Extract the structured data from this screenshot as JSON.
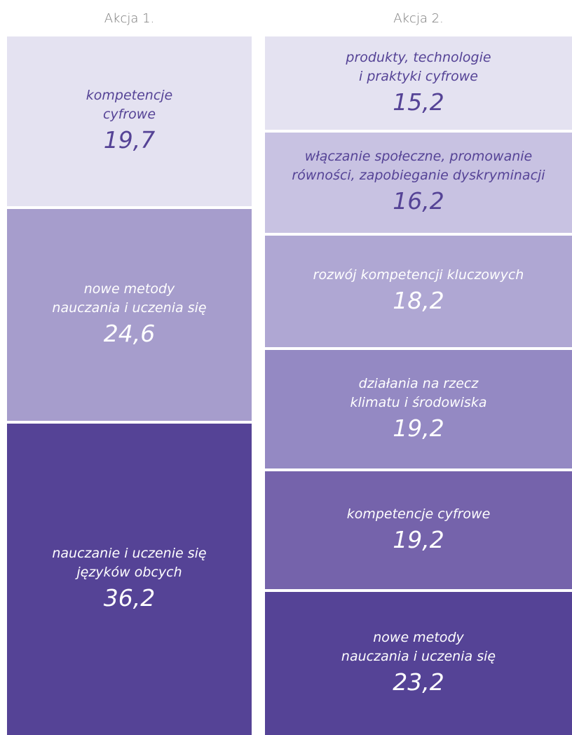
{
  "chart_data": [
    {
      "type": "stacked",
      "title": "Akcja 1.",
      "categories": [
        "kompetencje\ncyfrowe",
        "nowe metody\nnauczania i uczenia się",
        "nauczanie i uczenie się\njęzyków obcych"
      ],
      "values": [
        19.7,
        24.6,
        36.2
      ],
      "value_labels": [
        "19,7",
        "24,6",
        "36,2"
      ],
      "colors": [
        "#e4e2f1",
        "#a69dcc",
        "#554396"
      ]
    },
    {
      "type": "stacked",
      "title": "Akcja 2.",
      "categories": [
        "produkty, technologie\ni praktyki cyfrowe",
        "włączanie społeczne, promowanie\nrówności, zapobieganie dyskryminacji",
        "rozwój kompetencji kluczowych",
        "działania na rzecz\nklimatu i środowiska",
        "kompetencje cyfrowe",
        "nowe metody\nnauczania i uczenia się"
      ],
      "values": [
        15.2,
        16.2,
        18.2,
        19.2,
        19.2,
        23.2
      ],
      "value_labels": [
        "15,2",
        "16,2",
        "18,2",
        "19,2",
        "19,2",
        "23,2"
      ],
      "colors": [
        "#e4e2f1",
        "#c8c2e2",
        "#afa7d3",
        "#9489c3",
        "#7563ab",
        "#554396"
      ]
    }
  ]
}
